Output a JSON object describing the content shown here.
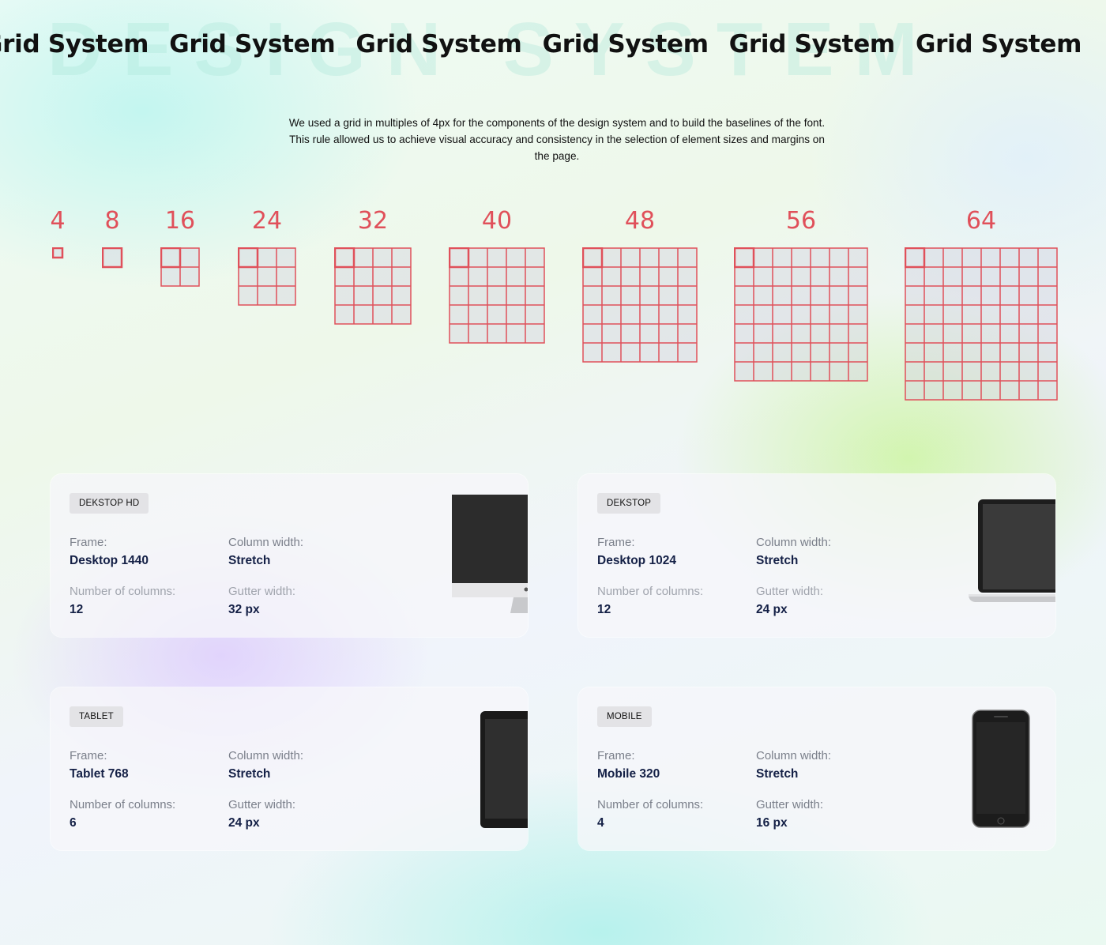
{
  "background_word": "DESIGN SYSTEM",
  "marquee": [
    "Grid System",
    "Grid System",
    "Grid System",
    "Grid System",
    "Grid System",
    "Grid System"
  ],
  "intro": "We used a grid in multiples of 4px for the components of the design system and to build the baselines of the font. This rule allowed us to achieve visual accuracy and consistency in the selection of element sizes and margins on the page.",
  "grid_sizes": [
    {
      "label": "4",
      "cells": 1
    },
    {
      "label": "8",
      "cells": 1
    },
    {
      "label": "16",
      "cells": 2
    },
    {
      "label": "24",
      "cells": 3
    },
    {
      "label": "32",
      "cells": 4
    },
    {
      "label": "40",
      "cells": 5
    },
    {
      "label": "48",
      "cells": 6
    },
    {
      "label": "56",
      "cells": 7
    },
    {
      "label": "64",
      "cells": 8
    }
  ],
  "colors": {
    "grid_stroke": "#e0505a",
    "grid_fill": "rgba(210,210,225,0.45)",
    "value_text": "#142046"
  },
  "cards": [
    {
      "badge": "DEKSTOP HD",
      "frame_label": "Frame:",
      "frame_value": "Desktop 1440",
      "colw_label": "Column width:",
      "colw_value": "Stretch",
      "cols_label": "Number of columns:",
      "cols_value": "12",
      "gutter_label": "Gutter width:",
      "gutter_value": "32 px",
      "device": "imac-icon"
    },
    {
      "badge": "DEKSTOP",
      "frame_label": "Frame:",
      "frame_value": "Desktop 1024",
      "colw_label": "Column width:",
      "colw_value": "Stretch",
      "cols_label": "Number of columns:",
      "cols_value": "12",
      "gutter_label": "Gutter width:",
      "gutter_value": "24 px",
      "device": "laptop-icon"
    },
    {
      "badge": "TABLET",
      "frame_label": "Frame:",
      "frame_value": "Tablet 768",
      "colw_label": "Column width:",
      "colw_value": "Stretch",
      "cols_label": "Number of columns:",
      "cols_value": "6",
      "gutter_label": "Gutter width:",
      "gutter_value": "24 px",
      "device": "tablet-icon"
    },
    {
      "badge": "MOBILE",
      "frame_label": "Frame:",
      "frame_value": "Mobile 320",
      "colw_label": "Column width:",
      "colw_value": "Stretch",
      "cols_label": "Number of columns:",
      "cols_value": "4",
      "gutter_label": "Gutter width:",
      "gutter_value": "16 px",
      "device": "phone-icon"
    }
  ]
}
